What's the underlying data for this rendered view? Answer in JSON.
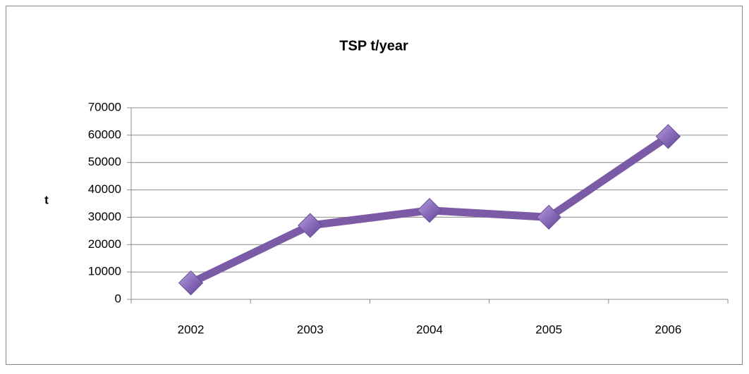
{
  "chart_data": {
    "type": "line",
    "title": "TSP t/year",
    "y_label": "t",
    "categories": [
      "2002",
      "2003",
      "2004",
      "2005",
      "2006"
    ],
    "values": [
      6000,
      27000,
      32500,
      30000,
      59500
    ],
    "color": "#7b5ba6",
    "ylim": [
      0,
      70000
    ],
    "yticks": [
      0,
      10000,
      20000,
      30000,
      40000,
      50000,
      60000,
      70000
    ],
    "grid": true
  }
}
